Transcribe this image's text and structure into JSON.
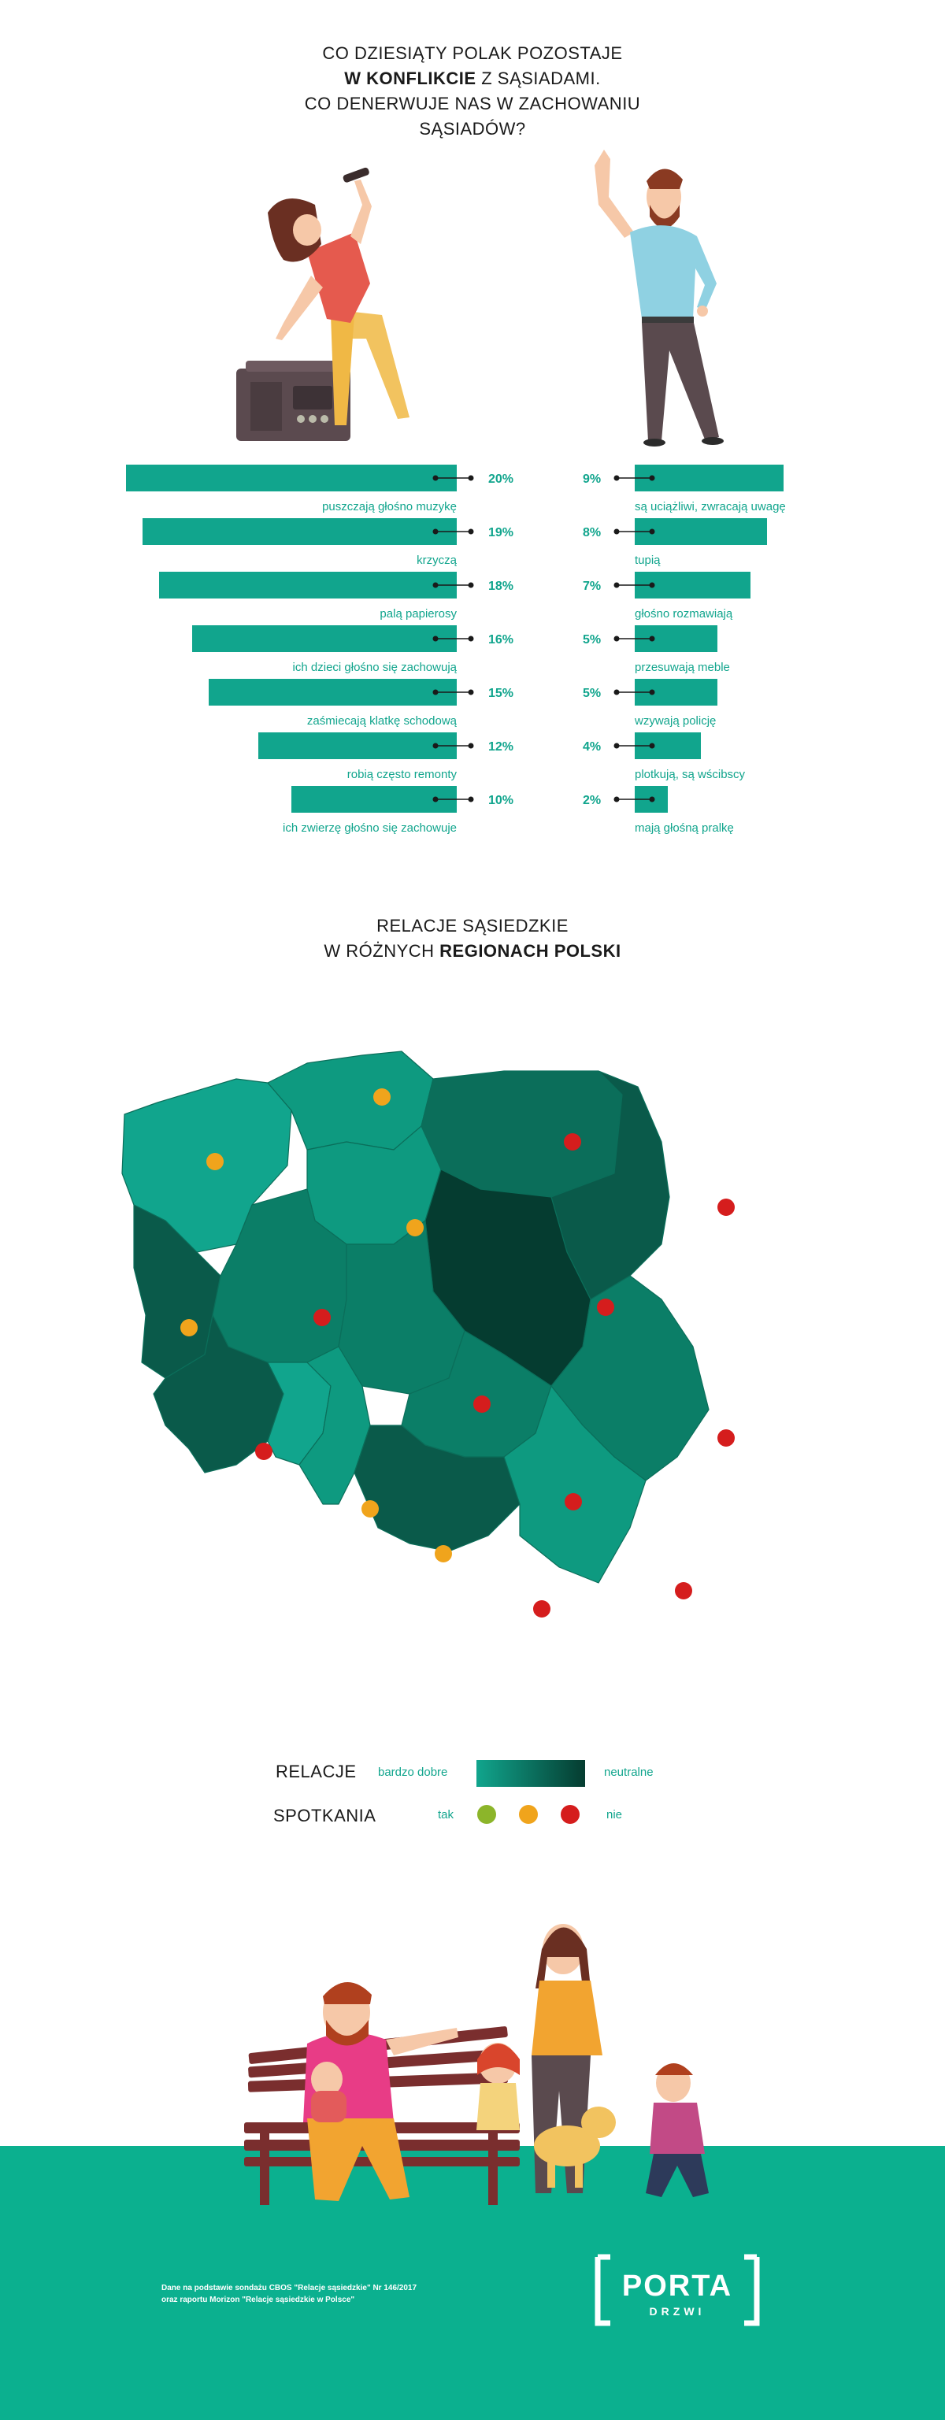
{
  "header": {
    "line1": "CO DZIESIĄTY POLAK POZOSTAJE",
    "line2_bold": "W KONFLIKCIE",
    "line2_rest": " Z SĄSIADAMI.",
    "line3": "CO DENERWUJE NAS W ZACHOWANIU",
    "line4": "SĄSIADÓW?"
  },
  "chart_data": [
    {
      "type": "bar",
      "orientation": "horizontal",
      "categories": [
        "puszczają głośno muzykę",
        "krzyczą",
        "palą papierosy",
        "ich dzieci głośno się zachowują",
        "zaśmiecają klatkę schodową",
        "robią często remonty",
        "ich zwierzę głośno się zachowuje"
      ],
      "values": [
        20,
        19,
        18,
        16,
        15,
        12,
        10
      ],
      "value_labels": [
        "20%",
        "19%",
        "18%",
        "16%",
        "15%",
        "12%",
        "10%"
      ],
      "color": "#11a58d"
    },
    {
      "type": "bar",
      "orientation": "horizontal",
      "categories": [
        "są uciążliwi, zwracają uwagę",
        "tupią",
        "głośno rozmawiają",
        "przesuwają meble",
        "wzywają policję",
        "plotkują, są wścibscy",
        "mają głośną pralkę"
      ],
      "values": [
        9,
        8,
        7,
        5,
        5,
        4,
        2
      ],
      "value_labels": [
        "9%",
        "8%",
        "7%",
        "5%",
        "5%",
        "4%",
        "2%"
      ],
      "color": "#11a58d"
    }
  ],
  "map_section": {
    "line1": "RELACJE SĄSIEDZKIE",
    "line2_normal": "W RÓŻNYCH ",
    "line2_bold": "REGIONACH POLSKI"
  },
  "legend": {
    "relacje": "RELACJE",
    "relacje_left": "bardzo dobre",
    "relacje_right": "neutralne",
    "spotkania": "SPOTKANIA",
    "spotkania_left": "tak",
    "spotkania_right": "nie",
    "gradient_colors": [
      "#11a58d",
      "#053c30"
    ],
    "dot_colors": [
      "#8cb52a",
      "#f0a41c",
      "#d51d1d"
    ]
  },
  "colors": {
    "accent": "#11a58d",
    "footer_bg": "#0bb08f",
    "dark": "#053c30"
  },
  "footer": {
    "note_line1": "Dane na podstawie sondażu CBOS \"Relacje sąsiedzkie\" Nr 146/2017",
    "note_line2": "oraz raportu Morizon \"Relacje sąsiedzkie w Polsce\"",
    "logo_top": "PORTA",
    "logo_bottom": "DRZWI"
  }
}
